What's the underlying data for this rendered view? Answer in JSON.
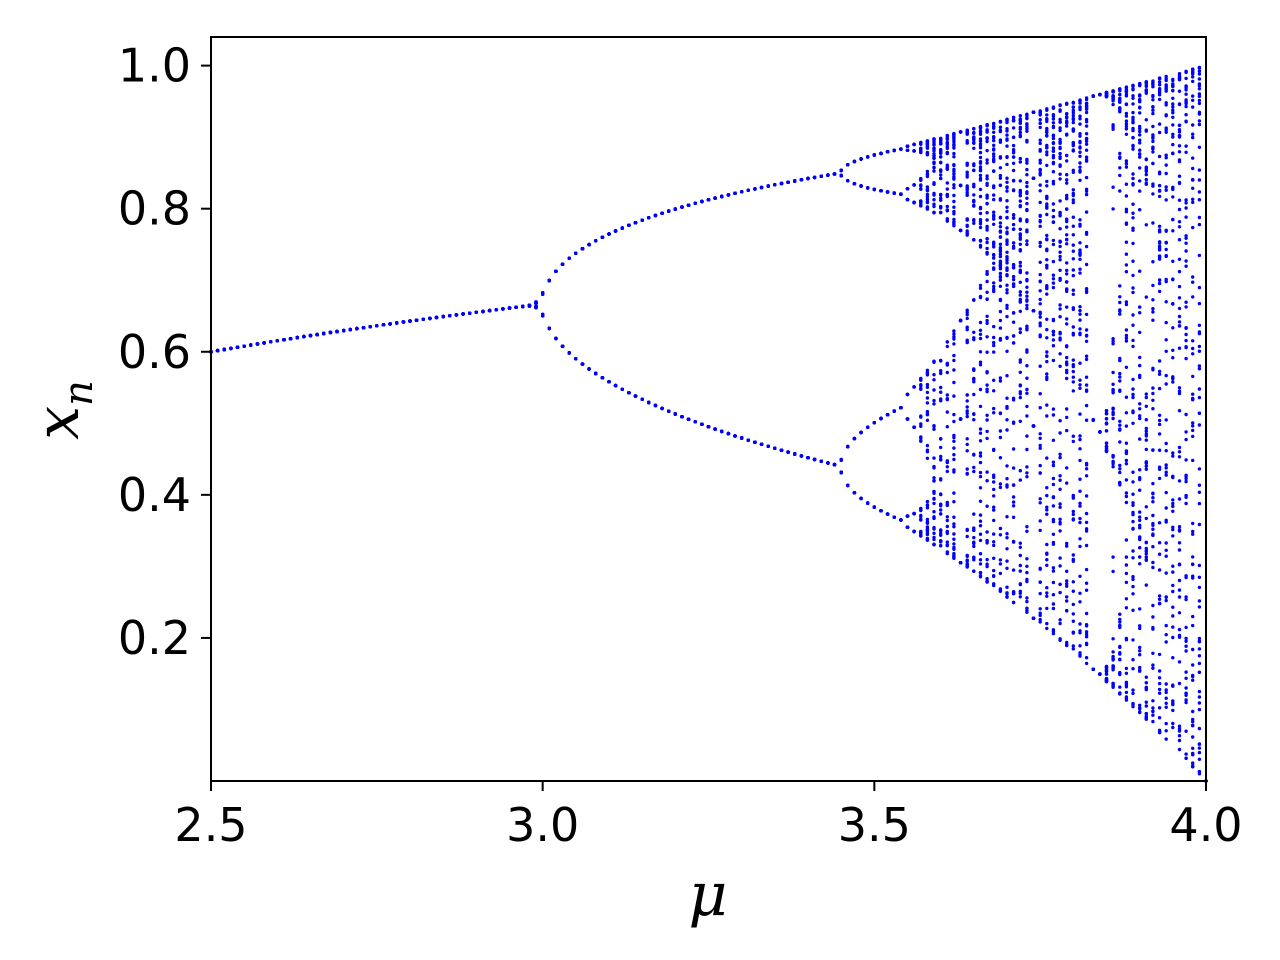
{
  "chart_data": {
    "type": "scatter",
    "title": "",
    "xlabel": "μ",
    "ylabel_main": "x",
    "ylabel_sub": "n",
    "xlim": [
      2.5,
      4.0
    ],
    "ylim": [
      0.0,
      1.04
    ],
    "x_ticks": [
      2.5,
      3.0,
      3.5,
      4.0
    ],
    "x_tick_labels": [
      "2.5",
      "3.0",
      "3.5",
      "4.0"
    ],
    "y_ticks": [
      0.2,
      0.4,
      0.6,
      0.8,
      1.0
    ],
    "y_tick_labels": [
      "0.2",
      "0.4",
      "0.6",
      "0.8",
      "1.0"
    ],
    "grid": false,
    "legend": "none",
    "color": "#0000ff",
    "series": [
      {
        "description_free": true,
        "x_start": 2.5,
        "x_end": 4.0,
        "x_step": 0.01,
        "x0": 0.5,
        "transient": 200,
        "samples": 70,
        "rule": "x_next = μ·x·(1 − x)"
      }
    ]
  }
}
